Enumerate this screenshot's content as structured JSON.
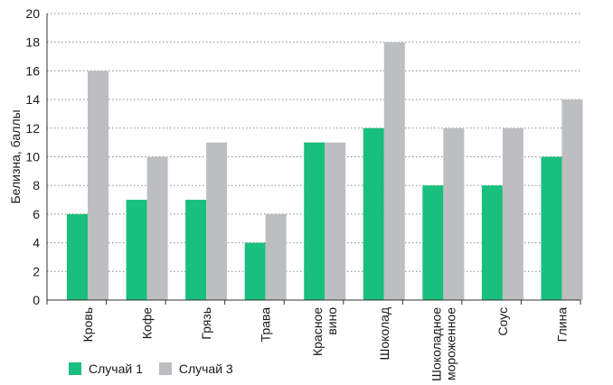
{
  "chart_data": {
    "type": "bar",
    "title": "",
    "xlabel": "",
    "ylabel": "Белизна, баллы",
    "ylim": [
      0,
      20
    ],
    "yticks": [
      0,
      2,
      4,
      6,
      8,
      10,
      12,
      14,
      16,
      18,
      20
    ],
    "grid": "horizontal-dotted",
    "legend_position": "bottom-left",
    "categories": [
      "Кровь",
      "Кофе",
      "Грязь",
      "Трава",
      "Красное вино",
      "Шоколад",
      "Шоколадное мороженное",
      "Соус",
      "Глина"
    ],
    "category_lines": [
      [
        "Кровь"
      ],
      [
        "Кофе"
      ],
      [
        "Грязь"
      ],
      [
        "Трава"
      ],
      [
        "Красное",
        "вино"
      ],
      [
        "Шоколад"
      ],
      [
        "Шоколадное",
        "мороженное"
      ],
      [
        "Соус"
      ],
      [
        "Глина"
      ]
    ],
    "series": [
      {
        "name": "Случай 1",
        "color": "#19bf7c",
        "values": [
          6,
          7,
          7,
          4,
          11,
          12,
          8,
          8,
          10
        ]
      },
      {
        "name": "Случай 3",
        "color": "#bcbec0",
        "values": [
          16,
          10,
          11,
          6,
          11,
          18,
          12,
          12,
          14
        ]
      }
    ]
  },
  "legend": {
    "items": [
      {
        "label": "Случай 1",
        "color": "#19bf7c"
      },
      {
        "label": "Случай 3",
        "color": "#bcbec0"
      }
    ]
  }
}
